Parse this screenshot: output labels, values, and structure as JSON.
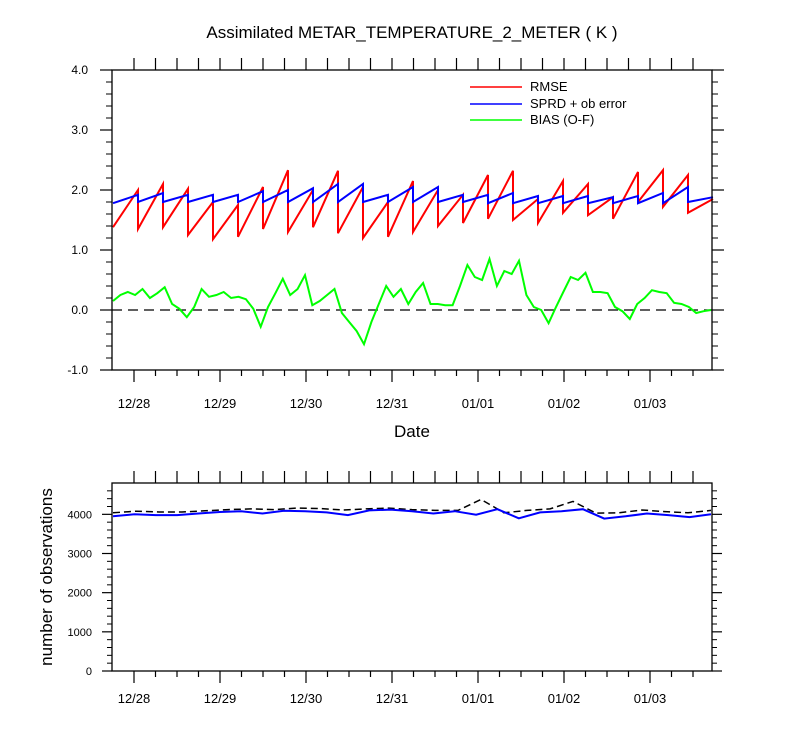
{
  "chart_data": [
    {
      "type": "line",
      "title": "Assimilated METAR_TEMPERATURE_2_METER ( K )",
      "xlabel": "Date",
      "ylabel": "",
      "ylim": [
        -1.0,
        4.0
      ],
      "yticks": [
        "-1.0",
        "0.0",
        "1.0",
        "2.0",
        "3.0",
        "4.0"
      ],
      "xticks": [
        "12/28",
        "12/29",
        "12/30",
        "12/31",
        "01/01",
        "01/02",
        "01/03"
      ],
      "legend_position": "top-right",
      "zero_line": {
        "y": 0.0,
        "style": "dashed",
        "color": "#000000"
      },
      "series": [
        {
          "name": "RMSE",
          "color": "#ff0000",
          "style": "sawtooth",
          "lows": [
            1.38,
            1.35,
            1.38,
            1.25,
            1.18,
            1.22,
            1.35,
            1.3,
            1.38,
            1.28,
            1.2,
            1.22,
            1.3,
            1.4,
            1.45,
            1.52,
            1.5,
            1.45,
            1.62,
            1.58,
            1.52,
            1.8,
            1.72,
            1.62
          ],
          "highs": [
            2.0,
            2.1,
            2.02,
            1.8,
            1.75,
            2.05,
            2.33,
            2.0,
            2.32,
            2.05,
            1.8,
            2.15,
            2.0,
            1.92,
            2.25,
            2.32,
            1.85,
            2.15,
            2.1,
            1.88,
            2.3,
            2.33,
            2.25,
            1.85
          ]
        },
        {
          "name": "SPRD + ob error",
          "color": "#0000ff",
          "style": "sawtooth",
          "lows": [
            1.78,
            1.8,
            1.8,
            1.8,
            1.8,
            1.8,
            1.8,
            1.8,
            1.8,
            1.8,
            1.8,
            1.8,
            1.8,
            1.8,
            1.8,
            1.78,
            1.78,
            1.78,
            1.78,
            1.78,
            1.78,
            1.78,
            1.78,
            1.8
          ],
          "highs": [
            1.92,
            1.95,
            1.92,
            1.92,
            1.92,
            1.98,
            2.0,
            2.03,
            2.1,
            2.1,
            1.92,
            2.05,
            2.05,
            1.92,
            1.92,
            1.95,
            1.9,
            1.9,
            1.9,
            1.88,
            1.9,
            1.95,
            2.05,
            1.88
          ]
        },
        {
          "name": "BIAS (O-F)",
          "color": "#00ff00",
          "style": "polyline",
          "points": [
            0.15,
            0.25,
            0.3,
            0.25,
            0.35,
            0.2,
            0.28,
            0.38,
            0.1,
            0.02,
            -0.12,
            0.05,
            0.35,
            0.22,
            0.25,
            0.3,
            0.2,
            0.22,
            0.18,
            0.02,
            -0.28,
            0.05,
            0.28,
            0.52,
            0.25,
            0.35,
            0.58,
            0.08,
            0.15,
            0.25,
            0.35,
            -0.05,
            -0.2,
            -0.35,
            -0.57,
            -0.2,
            0.1,
            0.4,
            0.22,
            0.35,
            0.1,
            0.3,
            0.45,
            0.1,
            0.1,
            0.08,
            0.08,
            0.4,
            0.75,
            0.55,
            0.5,
            0.85,
            0.4,
            0.65,
            0.6,
            0.82,
            0.25,
            0.05,
            0.0,
            -0.22,
            0.05,
            0.3,
            0.55,
            0.5,
            0.62,
            0.3,
            0.3,
            0.28,
            0.05,
            -0.02,
            -0.15,
            0.1,
            0.2,
            0.33,
            0.3,
            0.28,
            0.12,
            0.1,
            0.05,
            -0.05,
            -0.02,
            0.0
          ]
        }
      ]
    },
    {
      "type": "line",
      "title": "",
      "xlabel": "",
      "ylabel": "number of observations",
      "ylim": [
        0,
        4800
      ],
      "yticks": [
        "0",
        "1000",
        "2000",
        "3000",
        "4000"
      ],
      "xticks": [
        "12/28",
        "12/29",
        "12/30",
        "12/31",
        "01/01",
        "01/02",
        "01/03"
      ],
      "series": [
        {
          "color": "#000000",
          "style": "dashed",
          "values": [
            4040,
            4080,
            4060,
            4060,
            4090,
            4120,
            4140,
            4120,
            4160,
            4150,
            4110,
            4140,
            4160,
            4120,
            4100,
            4100,
            4380,
            4040,
            4100,
            4140,
            4330,
            4030,
            4040,
            4110,
            4070,
            4040,
            4100
          ]
        },
        {
          "color": "#0000ff",
          "style": "solid",
          "values": [
            3950,
            4000,
            3980,
            3980,
            4020,
            4060,
            4080,
            4020,
            4090,
            4080,
            4050,
            3980,
            4100,
            4120,
            4080,
            4020,
            4080,
            3990,
            4130,
            3900,
            4050,
            4080,
            4130,
            3890,
            3950,
            4020,
            3980,
            3930,
            4000
          ]
        }
      ]
    }
  ]
}
